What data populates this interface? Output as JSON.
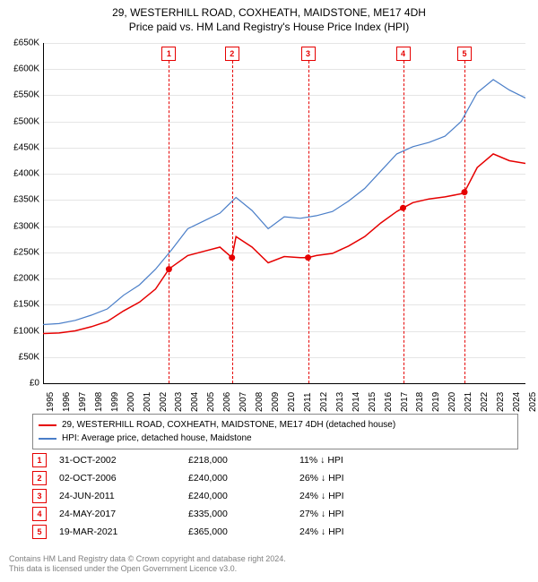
{
  "title": {
    "line1": "29, WESTERHILL ROAD, COXHEATH, MAIDSTONE, ME17 4DH",
    "line2": "Price paid vs. HM Land Registry's House Price Index (HPI)"
  },
  "chart": {
    "type": "line",
    "background_color": "#ffffff",
    "grid_color": "#e5e5e5",
    "axis_color": "#000000",
    "label_fontsize": 10,
    "ylim": [
      0,
      650000
    ],
    "ytick_step": 50000,
    "ylabels": [
      "£0",
      "£50K",
      "£100K",
      "£150K",
      "£200K",
      "£250K",
      "£300K",
      "£350K",
      "£400K",
      "£450K",
      "£500K",
      "£550K",
      "£600K",
      "£650K"
    ],
    "xlim": [
      1995,
      2025
    ],
    "xticks": [
      1995,
      1996,
      1997,
      1998,
      1999,
      2000,
      2001,
      2002,
      2003,
      2004,
      2005,
      2006,
      2007,
      2008,
      2009,
      2010,
      2011,
      2012,
      2013,
      2014,
      2015,
      2016,
      2017,
      2018,
      2019,
      2020,
      2021,
      2022,
      2023,
      2024,
      2025
    ],
    "series": [
      {
        "name": "property",
        "label": "29, WESTERHILL ROAD, COXHEATH, MAIDSTONE, ME17 4DH (detached house)",
        "color": "#e60000",
        "line_width": 1.5,
        "points": [
          [
            1995,
            95000
          ],
          [
            1996,
            96000
          ],
          [
            1997,
            100000
          ],
          [
            1998,
            108000
          ],
          [
            1999,
            118000
          ],
          [
            2000,
            138000
          ],
          [
            2001,
            155000
          ],
          [
            2002,
            180000
          ],
          [
            2002.83,
            218000
          ],
          [
            2003,
            222000
          ],
          [
            2004,
            244000
          ],
          [
            2005,
            252000
          ],
          [
            2006,
            260000
          ],
          [
            2006.75,
            240000
          ],
          [
            2007,
            280000
          ],
          [
            2008,
            260000
          ],
          [
            2009,
            230000
          ],
          [
            2010,
            242000
          ],
          [
            2011,
            240000
          ],
          [
            2011.48,
            240000
          ],
          [
            2012,
            244000
          ],
          [
            2013,
            248000
          ],
          [
            2014,
            262000
          ],
          [
            2015,
            280000
          ],
          [
            2016,
            306000
          ],
          [
            2017,
            328000
          ],
          [
            2017.39,
            335000
          ],
          [
            2018,
            345000
          ],
          [
            2019,
            352000
          ],
          [
            2020,
            356000
          ],
          [
            2021,
            362000
          ],
          [
            2021.21,
            365000
          ],
          [
            2022,
            412000
          ],
          [
            2023,
            438000
          ],
          [
            2024,
            425000
          ],
          [
            2025,
            420000
          ]
        ]
      },
      {
        "name": "hpi",
        "label": "HPI: Average price, detached house, Maidstone",
        "color": "#4a7ec8",
        "line_width": 1.2,
        "points": [
          [
            1995,
            112000
          ],
          [
            1996,
            114000
          ],
          [
            1997,
            120000
          ],
          [
            1998,
            130000
          ],
          [
            1999,
            142000
          ],
          [
            2000,
            168000
          ],
          [
            2001,
            188000
          ],
          [
            2002,
            218000
          ],
          [
            2003,
            255000
          ],
          [
            2004,
            295000
          ],
          [
            2005,
            310000
          ],
          [
            2006,
            325000
          ],
          [
            2007,
            355000
          ],
          [
            2008,
            330000
          ],
          [
            2009,
            295000
          ],
          [
            2010,
            318000
          ],
          [
            2011,
            315000
          ],
          [
            2012,
            320000
          ],
          [
            2013,
            328000
          ],
          [
            2014,
            348000
          ],
          [
            2015,
            372000
          ],
          [
            2016,
            405000
          ],
          [
            2017,
            438000
          ],
          [
            2018,
            452000
          ],
          [
            2019,
            460000
          ],
          [
            2020,
            472000
          ],
          [
            2021,
            500000
          ],
          [
            2022,
            555000
          ],
          [
            2023,
            580000
          ],
          [
            2024,
            560000
          ],
          [
            2025,
            545000
          ]
        ]
      }
    ],
    "markers": [
      {
        "n": "1",
        "x": 2002.83,
        "y": 218000,
        "color": "#e60000"
      },
      {
        "n": "2",
        "x": 2006.75,
        "y": 240000,
        "color": "#e60000"
      },
      {
        "n": "3",
        "x": 2011.48,
        "y": 240000,
        "color": "#e60000"
      },
      {
        "n": "4",
        "x": 2017.39,
        "y": 335000,
        "color": "#e60000"
      },
      {
        "n": "5",
        "x": 2021.21,
        "y": 365000,
        "color": "#e60000"
      }
    ]
  },
  "legend": {
    "border_color": "#888888"
  },
  "sales": [
    {
      "n": "1",
      "date": "31-OCT-2002",
      "price": "£218,000",
      "delta": "11% ↓ HPI",
      "color": "#e60000"
    },
    {
      "n": "2",
      "date": "02-OCT-2006",
      "price": "£240,000",
      "delta": "26% ↓ HPI",
      "color": "#e60000"
    },
    {
      "n": "3",
      "date": "24-JUN-2011",
      "price": "£240,000",
      "delta": "24% ↓ HPI",
      "color": "#e60000"
    },
    {
      "n": "4",
      "date": "24-MAY-2017",
      "price": "£335,000",
      "delta": "27% ↓ HPI",
      "color": "#e60000"
    },
    {
      "n": "5",
      "date": "19-MAR-2021",
      "price": "£365,000",
      "delta": "24% ↓ HPI",
      "color": "#e60000"
    }
  ],
  "footer": {
    "line1": "Contains HM Land Registry data © Crown copyright and database right 2024.",
    "line2": "This data is licensed under the Open Government Licence v3.0."
  }
}
